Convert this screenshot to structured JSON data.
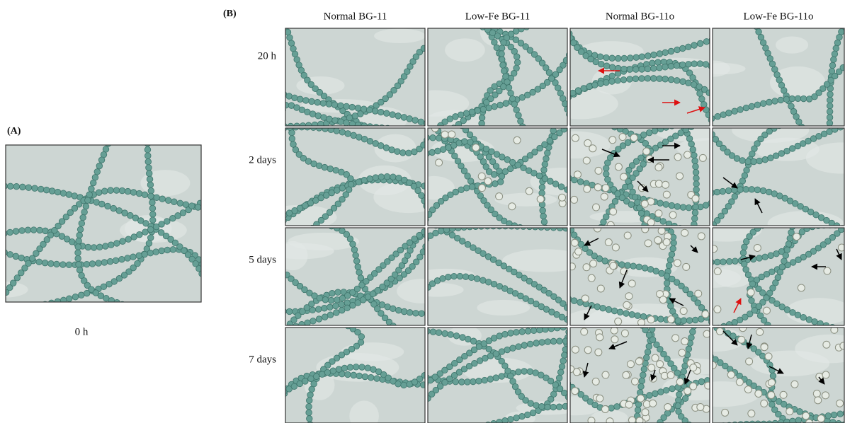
{
  "panel_a": {
    "label": "(A)",
    "caption": "0 h"
  },
  "panel_b": {
    "label": "(B)",
    "columns": [
      "Normal BG-11",
      "Low-Fe BG-11",
      "Normal BG-11o",
      "Low-Fe BG-11o"
    ],
    "rows": [
      "20 h",
      "2 days",
      "5 days",
      "7 days"
    ]
  }
}
